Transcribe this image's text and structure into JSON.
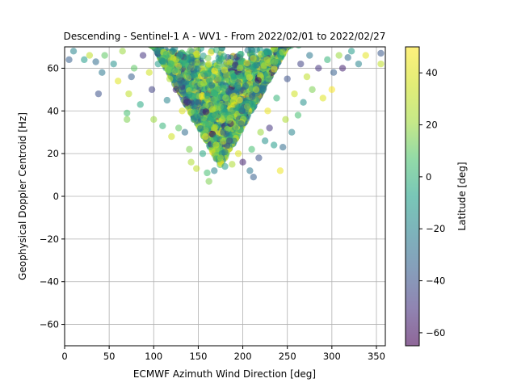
{
  "chart_data": {
    "type": "scatter",
    "title": "Descending - Sentinel-1 A - WV1 - From 2022/02/01 to 2022/02/27",
    "xlabel": "ECMWF Azimuth Wind Direction [deg]",
    "ylabel": "Geophysical Doppler Centroid [Hz]",
    "xlim": [
      0,
      360
    ],
    "ylim": [
      -70,
      70
    ],
    "xticks": [
      0,
      50,
      100,
      150,
      200,
      250,
      300,
      350
    ],
    "yticks": [
      -60,
      -40,
      -20,
      0,
      20,
      40,
      60
    ],
    "grid": true,
    "colormap": "viridis",
    "point_alpha": 0.55,
    "colorbar": {
      "label": "Latitude [deg]",
      "range": [
        -65,
        50
      ],
      "ticks": [
        -60,
        -40,
        -20,
        0,
        20,
        40
      ]
    },
    "points": [
      {
        "x": 5,
        "y": 64,
        "lat": -35
      },
      {
        "x": 10,
        "y": 68,
        "lat": -20
      },
      {
        "x": 22,
        "y": 64,
        "lat": -10
      },
      {
        "x": 28,
        "y": 66,
        "lat": 30
      },
      {
        "x": 35,
        "y": 63,
        "lat": -30
      },
      {
        "x": 38,
        "y": 48,
        "lat": -40
      },
      {
        "x": 42,
        "y": 58,
        "lat": -25
      },
      {
        "x": 45,
        "y": 66,
        "lat": 10
      },
      {
        "x": 55,
        "y": 62,
        "lat": -15
      },
      {
        "x": 60,
        "y": 54,
        "lat": 40
      },
      {
        "x": 65,
        "y": 68,
        "lat": 20
      },
      {
        "x": 70,
        "y": 36,
        "lat": 15
      },
      {
        "x": 70,
        "y": 39,
        "lat": 5
      },
      {
        "x": 72,
        "y": 48,
        "lat": 30
      },
      {
        "x": 75,
        "y": 56,
        "lat": -35
      },
      {
        "x": 78,
        "y": 60,
        "lat": 10
      },
      {
        "x": 85,
        "y": 43,
        "lat": -5
      },
      {
        "x": 88,
        "y": 66,
        "lat": -50
      },
      {
        "x": 95,
        "y": 58,
        "lat": 35
      },
      {
        "x": 98,
        "y": 50,
        "lat": -45
      },
      {
        "x": 100,
        "y": 36,
        "lat": 20
      },
      {
        "x": 105,
        "y": 62,
        "lat": -10
      },
      {
        "x": 110,
        "y": 33,
        "lat": 0
      },
      {
        "x": 115,
        "y": 45,
        "lat": -20
      },
      {
        "x": 118,
        "y": 55,
        "lat": 25
      },
      {
        "x": 120,
        "y": 28,
        "lat": 35
      },
      {
        "x": 125,
        "y": 50,
        "lat": -55
      },
      {
        "x": 128,
        "y": 32,
        "lat": 10
      },
      {
        "x": 132,
        "y": 40,
        "lat": 40
      },
      {
        "x": 135,
        "y": 30,
        "lat": -30
      },
      {
        "x": 138,
        "y": 58,
        "lat": 5
      },
      {
        "x": 140,
        "y": 22,
        "lat": 15
      },
      {
        "x": 142,
        "y": 16,
        "lat": 25
      },
      {
        "x": 145,
        "y": 36,
        "lat": -15
      },
      {
        "x": 148,
        "y": 13,
        "lat": 30
      },
      {
        "x": 150,
        "y": 44,
        "lat": -40
      },
      {
        "x": 155,
        "y": 20,
        "lat": -5
      },
      {
        "x": 158,
        "y": 28,
        "lat": 45
      },
      {
        "x": 160,
        "y": 11,
        "lat": 5
      },
      {
        "x": 162,
        "y": 7,
        "lat": 15
      },
      {
        "x": 165,
        "y": 52,
        "lat": -25
      },
      {
        "x": 168,
        "y": 12,
        "lat": -20
      },
      {
        "x": 170,
        "y": 24,
        "lat": 35
      },
      {
        "x": 172,
        "y": 38,
        "lat": 0
      },
      {
        "x": 175,
        "y": 18,
        "lat": 20
      },
      {
        "x": 178,
        "y": 30,
        "lat": -35
      },
      {
        "x": 180,
        "y": 14,
        "lat": -10
      },
      {
        "x": 182,
        "y": 46,
        "lat": 10
      },
      {
        "x": 185,
        "y": 26,
        "lat": -45
      },
      {
        "x": 188,
        "y": 15,
        "lat": 25
      },
      {
        "x": 190,
        "y": 56,
        "lat": -5
      },
      {
        "x": 195,
        "y": 20,
        "lat": 40
      },
      {
        "x": 198,
        "y": 34,
        "lat": -30
      },
      {
        "x": 200,
        "y": 16,
        "lat": -55
      },
      {
        "x": 205,
        "y": 42,
        "lat": 15
      },
      {
        "x": 208,
        "y": 12,
        "lat": -25
      },
      {
        "x": 210,
        "y": 22,
        "lat": 5
      },
      {
        "x": 212,
        "y": 9,
        "lat": -35
      },
      {
        "x": 215,
        "y": 50,
        "lat": 30
      },
      {
        "x": 218,
        "y": 18,
        "lat": -40
      },
      {
        "x": 220,
        "y": 30,
        "lat": 20
      },
      {
        "x": 225,
        "y": 26,
        "lat": -15
      },
      {
        "x": 228,
        "y": 40,
        "lat": 45
      },
      {
        "x": 230,
        "y": 32,
        "lat": -50
      },
      {
        "x": 235,
        "y": 24,
        "lat": -10
      },
      {
        "x": 238,
        "y": 46,
        "lat": 0
      },
      {
        "x": 242,
        "y": 12,
        "lat": 45
      },
      {
        "x": 245,
        "y": 23,
        "lat": -30
      },
      {
        "x": 248,
        "y": 36,
        "lat": 25
      },
      {
        "x": 250,
        "y": 55,
        "lat": -40
      },
      {
        "x": 255,
        "y": 30,
        "lat": -20
      },
      {
        "x": 258,
        "y": 48,
        "lat": 35
      },
      {
        "x": 262,
        "y": 38,
        "lat": 5
      },
      {
        "x": 265,
        "y": 62,
        "lat": -45
      },
      {
        "x": 268,
        "y": 44,
        "lat": -15
      },
      {
        "x": 272,
        "y": 56,
        "lat": 30
      },
      {
        "x": 275,
        "y": 66,
        "lat": -25
      },
      {
        "x": 278,
        "y": 50,
        "lat": 15
      },
      {
        "x": 285,
        "y": 60,
        "lat": -50
      },
      {
        "x": 290,
        "y": 46,
        "lat": 40
      },
      {
        "x": 295,
        "y": 64,
        "lat": 0
      },
      {
        "x": 300,
        "y": 50,
        "lat": 48
      },
      {
        "x": 302,
        "y": 58,
        "lat": -35
      },
      {
        "x": 308,
        "y": 66,
        "lat": 20
      },
      {
        "x": 312,
        "y": 60,
        "lat": -55
      },
      {
        "x": 318,
        "y": 65,
        "lat": -30
      },
      {
        "x": 322,
        "y": 68,
        "lat": -10
      },
      {
        "x": 330,
        "y": 62,
        "lat": -20
      },
      {
        "x": 338,
        "y": 66,
        "lat": 42
      },
      {
        "x": 355,
        "y": 62,
        "lat": 30
      },
      {
        "x": 355,
        "y": 67,
        "lat": -38
      }
    ]
  }
}
